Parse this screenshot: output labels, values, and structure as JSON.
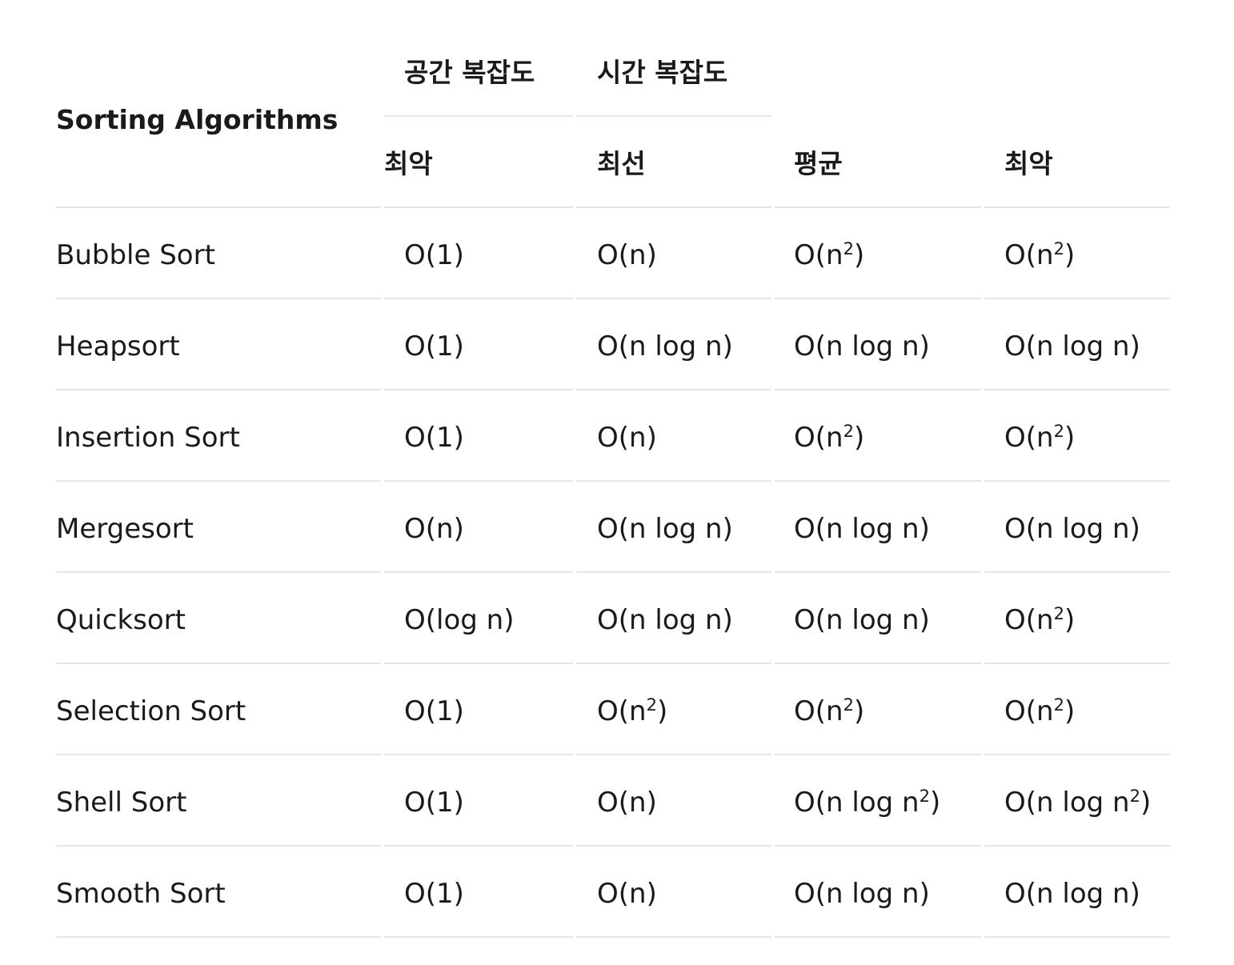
{
  "table": {
    "corner_header": "Sorting Algorithms",
    "group_headers": [
      {
        "label": "공간 복잡도"
      },
      {
        "label": "시간 복잡도"
      }
    ],
    "sub_headers": [
      "최악",
      "최선",
      "평균",
      "최악"
    ],
    "rows": [
      {
        "name": "Bubble Sort",
        "cells": [
          {
            "base": "O(1)",
            "sup": "",
            "tail": ""
          },
          {
            "base": "O(n)",
            "sup": "",
            "tail": ""
          },
          {
            "base": "O(n",
            "sup": "2",
            "tail": ")"
          },
          {
            "base": "O(n",
            "sup": "2",
            "tail": ")"
          }
        ]
      },
      {
        "name": "Heapsort",
        "cells": [
          {
            "base": "O(1)",
            "sup": "",
            "tail": ""
          },
          {
            "base": "O(n log n)",
            "sup": "",
            "tail": ""
          },
          {
            "base": "O(n log n)",
            "sup": "",
            "tail": ""
          },
          {
            "base": "O(n log n)",
            "sup": "",
            "tail": ""
          }
        ]
      },
      {
        "name": "Insertion Sort",
        "cells": [
          {
            "base": "O(1)",
            "sup": "",
            "tail": ""
          },
          {
            "base": "O(n)",
            "sup": "",
            "tail": ""
          },
          {
            "base": "O(n",
            "sup": "2",
            "tail": ")"
          },
          {
            "base": "O(n",
            "sup": "2",
            "tail": ")"
          }
        ]
      },
      {
        "name": "Mergesort",
        "cells": [
          {
            "base": "O(n)",
            "sup": "",
            "tail": ""
          },
          {
            "base": "O(n log n)",
            "sup": "",
            "tail": ""
          },
          {
            "base": "O(n log n)",
            "sup": "",
            "tail": ""
          },
          {
            "base": "O(n log n)",
            "sup": "",
            "tail": ""
          }
        ]
      },
      {
        "name": "Quicksort",
        "cells": [
          {
            "base": "O(log n)",
            "sup": "",
            "tail": ""
          },
          {
            "base": "O(n log n)",
            "sup": "",
            "tail": ""
          },
          {
            "base": "O(n log n)",
            "sup": "",
            "tail": ""
          },
          {
            "base": "O(n",
            "sup": "2",
            "tail": ")"
          }
        ]
      },
      {
        "name": "Selection Sort",
        "cells": [
          {
            "base": "O(1)",
            "sup": "",
            "tail": ""
          },
          {
            "base": "O(n",
            "sup": "2",
            "tail": ")"
          },
          {
            "base": "O(n",
            "sup": "2",
            "tail": ")"
          },
          {
            "base": "O(n",
            "sup": "2",
            "tail": ")"
          }
        ]
      },
      {
        "name": "Shell Sort",
        "cells": [
          {
            "base": "O(1)",
            "sup": "",
            "tail": ""
          },
          {
            "base": "O(n)",
            "sup": "",
            "tail": ""
          },
          {
            "base": "O(n log n",
            "sup": "2",
            "tail": ")"
          },
          {
            "base": "O(n log n",
            "sup": "2",
            "tail": ")"
          }
        ]
      },
      {
        "name": "Smooth Sort",
        "cells": [
          {
            "base": "O(1)",
            "sup": "",
            "tail": ""
          },
          {
            "base": "O(n)",
            "sup": "",
            "tail": ""
          },
          {
            "base": "O(n log n)",
            "sup": "",
            "tail": ""
          },
          {
            "base": "O(n log n)",
            "sup": "",
            "tail": ""
          }
        ]
      }
    ]
  }
}
